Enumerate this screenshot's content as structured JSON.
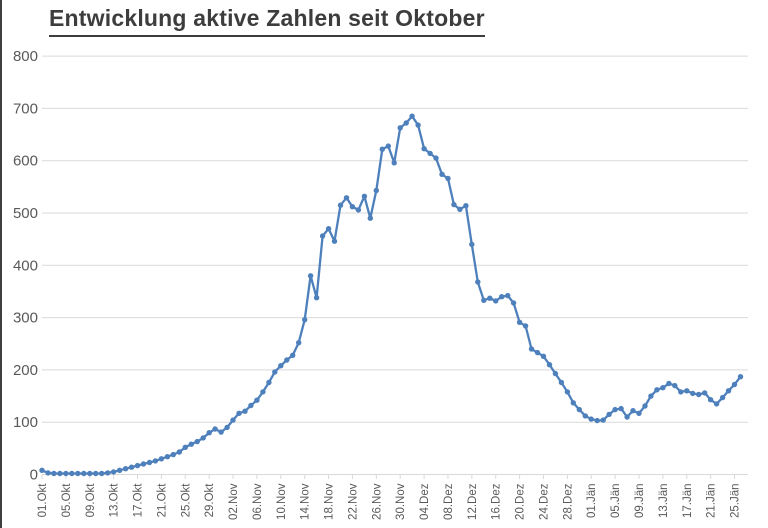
{
  "title": {
    "text": "Entwicklung aktive Zahlen seit Oktober"
  },
  "colors": {
    "line": "#4e80bc",
    "marker": "#4e80bc",
    "grid": "#d9d9d9",
    "axis_text": "#595959",
    "title_text": "#3d3d3d",
    "background": "#ffffff"
  },
  "chart_data": {
    "type": "line",
    "title": "Entwicklung aktive Zahlen seit Oktober",
    "xlabel": "",
    "ylabel": "",
    "ylim": [
      0,
      800
    ],
    "y_ticks": [
      800,
      700,
      600,
      500,
      400,
      300,
      200,
      100,
      0
    ],
    "grid": "horizontal",
    "legend": "none",
    "marker": "circle",
    "x_tick_labels": [
      "01.Okt",
      "05.Okt",
      "09.Okt",
      "13.Okt",
      "17.Okt",
      "21.Okt",
      "25.Okt",
      "29.Okt",
      "02.Nov",
      "06.Nov",
      "10.Nov",
      "14.Nov",
      "18.Nov",
      "22.Nov",
      "26.Nov",
      "30.Nov",
      "04.Dez",
      "08.Dez",
      "12.Dez",
      "16.Dez",
      "20.Dez",
      "24.Dez",
      "28.Dez",
      "01.Jän",
      "05.Jän",
      "09.Jän",
      "13.Jän",
      "17.Jän",
      "21.Jän",
      "25.Jän"
    ],
    "x_label_every_n_points": 4,
    "values": [
      8,
      3,
      2,
      2,
      2,
      2,
      2,
      2,
      2,
      2,
      2,
      3,
      5,
      8,
      11,
      14,
      17,
      20,
      23,
      26,
      30,
      34,
      38,
      43,
      52,
      58,
      63,
      70,
      80,
      87,
      81,
      90,
      104,
      117,
      121,
      132,
      142,
      158,
      176,
      196,
      208,
      219,
      228,
      252,
      296,
      380,
      338,
      456,
      470,
      446,
      515,
      529,
      512,
      506,
      532,
      490,
      543,
      622,
      628,
      596,
      663,
      672,
      685,
      668,
      623,
      614,
      605,
      574,
      566,
      516,
      507,
      514,
      440,
      368,
      333,
      337,
      332,
      340,
      342,
      328,
      291,
      284,
      240,
      233,
      226,
      210,
      193,
      176,
      158,
      137,
      124,
      112,
      106,
      103,
      104,
      115,
      124,
      126,
      110,
      122,
      117,
      131,
      150,
      162,
      166,
      174,
      170,
      158,
      160,
      155,
      153,
      156,
      143,
      135,
      147,
      160,
      172,
      187
    ]
  }
}
